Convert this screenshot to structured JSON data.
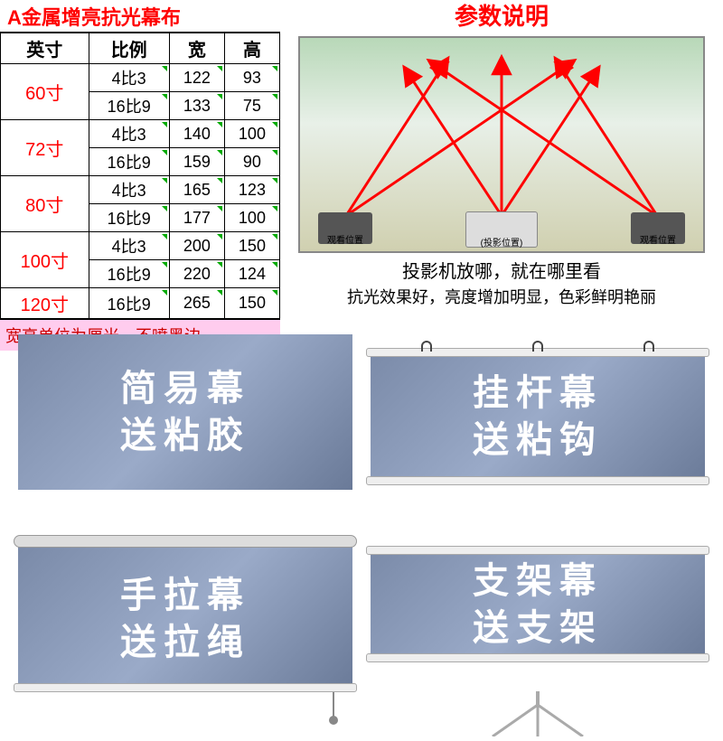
{
  "header": {
    "title_left": "A金属增亮抗光幕布",
    "title_right": "参数说明"
  },
  "table": {
    "columns": [
      "英寸",
      "比例",
      "宽",
      "高"
    ],
    "rows": [
      {
        "size": "60寸",
        "specs": [
          [
            "4比3",
            "122",
            "93"
          ],
          [
            "16比9",
            "133",
            "75"
          ]
        ]
      },
      {
        "size": "72寸",
        "specs": [
          [
            "4比3",
            "140",
            "100"
          ],
          [
            "16比9",
            "159",
            "90"
          ]
        ]
      },
      {
        "size": "80寸",
        "specs": [
          [
            "4比3",
            "165",
            "123"
          ],
          [
            "16比9",
            "177",
            "100"
          ]
        ]
      },
      {
        "size": "100寸",
        "specs": [
          [
            "4比3",
            "200",
            "150"
          ],
          [
            "16比9",
            "220",
            "124"
          ]
        ]
      },
      {
        "size": "120寸",
        "specs": [
          [
            "16比9",
            "265",
            "150"
          ]
        ]
      }
    ],
    "footnote": "宽高单位为厘米，不喷黑边"
  },
  "diagram": {
    "projector_left": "观看位置",
    "projector_center": "(投影位置)",
    "projector_right": "观看位置",
    "caption1": "投影机放哪，就在哪里看",
    "caption2": "抗光效果好，亮度增加明显，色彩鲜明艳丽",
    "arrow_color": "#ff0000"
  },
  "cards": [
    {
      "line1": "简易幕",
      "line2": "送粘胶"
    },
    {
      "line1": "挂杆幕",
      "line2": "送粘钩"
    },
    {
      "line1": "手拉幕",
      "line2": "送拉绳"
    },
    {
      "line1": "支架幕",
      "line2": "送支架"
    }
  ],
  "colors": {
    "red": "#ff0000",
    "screen_grad_a": "#7a8aa8",
    "screen_grad_b": "#9aaac8",
    "footnote_bg": "#fce"
  }
}
